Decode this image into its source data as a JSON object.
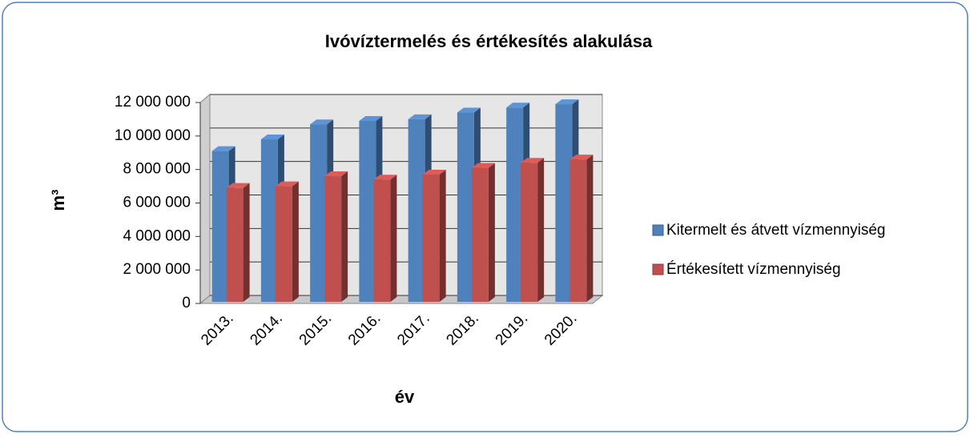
{
  "chart_data": {
    "type": "bar3d",
    "title": "Ivóvíztermelés és értékesítés alakulása",
    "xlabel": "év",
    "ylabel": "m³",
    "categories": [
      "2013.",
      "2014.",
      "2015.",
      "2016.",
      "2017.",
      "2018.",
      "2019.",
      "2020."
    ],
    "series": [
      {
        "name": "Kitermelt és átvett vízmennyiség",
        "color": "#4f81bd",
        "values": [
          9100000,
          9800000,
          10700000,
          10900000,
          11000000,
          11400000,
          11700000,
          11900000
        ]
      },
      {
        "name": "Értékesített vízmennyiség",
        "color": "#c0504d",
        "values": [
          6900000,
          7000000,
          7600000,
          7400000,
          7700000,
          8100000,
          8400000,
          8600000
        ]
      }
    ],
    "ylim": [
      0,
      12000000
    ],
    "yticks": [
      0,
      {
        "value": 2000000,
        "label": "2 000 000"
      },
      {
        "value": 4000000,
        "label": "4 000 000"
      },
      {
        "value": 6000000,
        "label": "6 000 000"
      },
      {
        "value": 8000000,
        "label": "8 000 000"
      },
      {
        "value": 10000000,
        "label": "10 000 000"
      },
      {
        "value": 12000000,
        "label": "12 000 000"
      }
    ],
    "grid": true,
    "legend": "right"
  }
}
